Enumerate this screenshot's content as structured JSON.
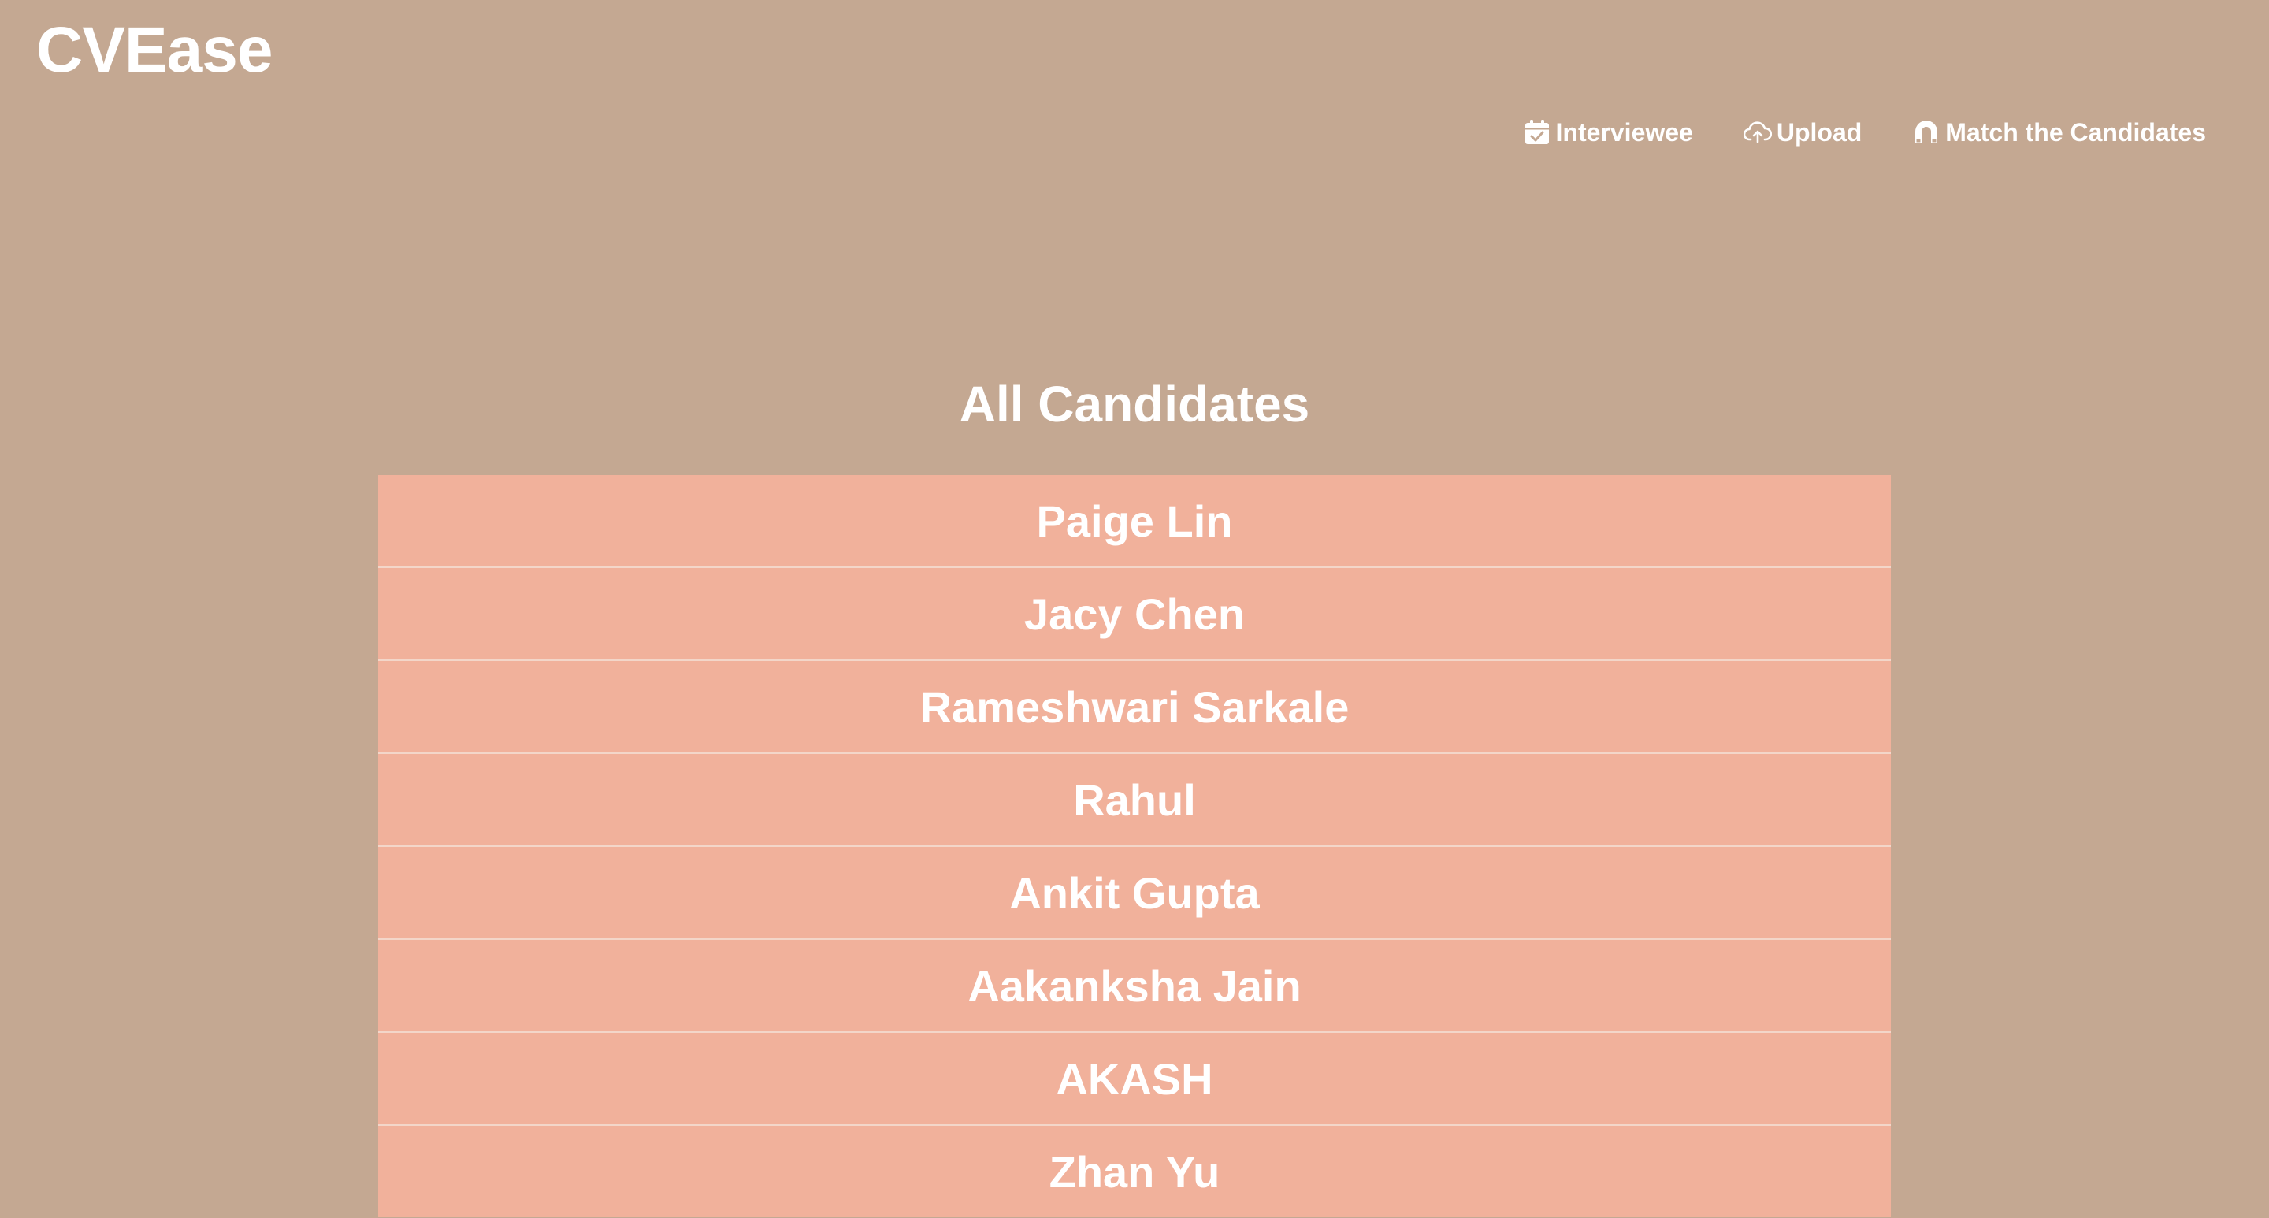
{
  "brand": {
    "name": "CVEase"
  },
  "nav": {
    "items": [
      {
        "label": "Interviewee",
        "icon": "calendar-check-icon"
      },
      {
        "label": "Upload",
        "icon": "cloud-upload-icon"
      },
      {
        "label": "Match the Candidates",
        "icon": "magnet-icon"
      }
    ]
  },
  "page": {
    "title": "All Candidates"
  },
  "candidates": [
    {
      "name": "Paige Lin"
    },
    {
      "name": "Jacy Chen"
    },
    {
      "name": "Rameshwari Sarkale"
    },
    {
      "name": "Rahul"
    },
    {
      "name": "Ankit Gupta"
    },
    {
      "name": "Aakanksha Jain"
    },
    {
      "name": "AKASH"
    },
    {
      "name": "Zhan Yu"
    }
  ],
  "colors": {
    "background": "#c4a892",
    "row": "#f1b19b",
    "row_divider": "#f3d6c9",
    "text": "#ffffff"
  }
}
